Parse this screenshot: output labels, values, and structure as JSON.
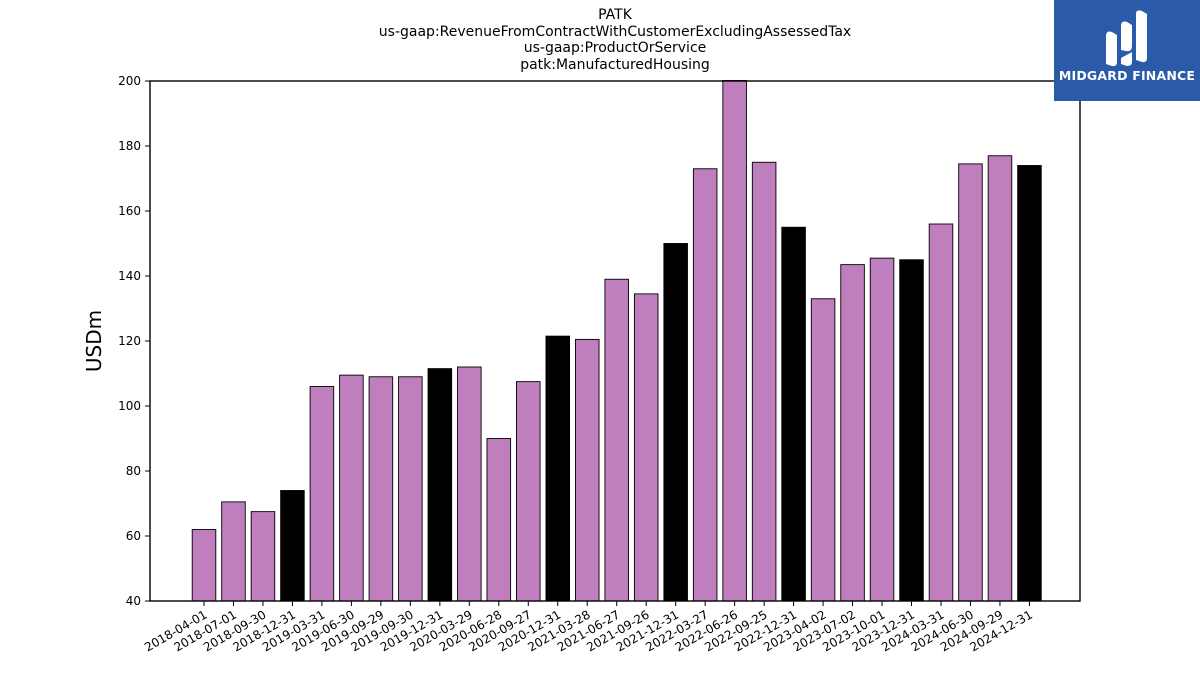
{
  "chart_data": {
    "type": "bar",
    "title_lines": [
      "PATK",
      "us-gaap:RevenueFromContractWithCustomerExcludingAssessedTax",
      "us-gaap:ProductOrService",
      "patk:ManufacturedHousing"
    ],
    "xlabel": "",
    "ylabel": "USDm",
    "ylim": [
      40,
      200
    ],
    "yticks": [
      40,
      60,
      80,
      100,
      120,
      140,
      160,
      180,
      200
    ],
    "grid": false,
    "categories": [
      "2018-04-01",
      "2018-07-01",
      "2018-09-30",
      "2018-12-31",
      "2019-03-31",
      "2019-06-30",
      "2019-09-29",
      "2019-09-30",
      "2019-12-31",
      "2020-03-29",
      "2020-06-28",
      "2020-09-27",
      "2020-12-31",
      "2021-03-28",
      "2021-06-27",
      "2021-09-26",
      "2021-12-31",
      "2022-03-27",
      "2022-06-26",
      "2022-09-25",
      "2022-12-31",
      "2023-04-02",
      "2023-07-02",
      "2023-10-01",
      "2023-12-31",
      "2024-03-31",
      "2024-06-30",
      "2024-09-29",
      "2024-12-31"
    ],
    "values": [
      62,
      70.5,
      67.5,
      74,
      106,
      109.5,
      109,
      109,
      111.5,
      112,
      90,
      107.5,
      121.5,
      120.5,
      139,
      134.5,
      150,
      173,
      200.5,
      175,
      155,
      133,
      143.5,
      145.5,
      145,
      156,
      174.5,
      177,
      174
    ],
    "period_types": [
      "q",
      "q",
      "q",
      "fy",
      "q",
      "q",
      "q",
      "q",
      "fy",
      "q",
      "q",
      "q",
      "fy",
      "q",
      "q",
      "q",
      "fy",
      "q",
      "q",
      "q",
      "fy",
      "q",
      "q",
      "q",
      "fy",
      "q",
      "q",
      "q",
      "fy"
    ],
    "colors": {
      "quarter": "#bf7fbf",
      "fiscal_year": "#000000",
      "edge": "#000000"
    }
  },
  "logo": {
    "text": "MIDGARD FINANCE",
    "background": "#2a5aa8"
  }
}
